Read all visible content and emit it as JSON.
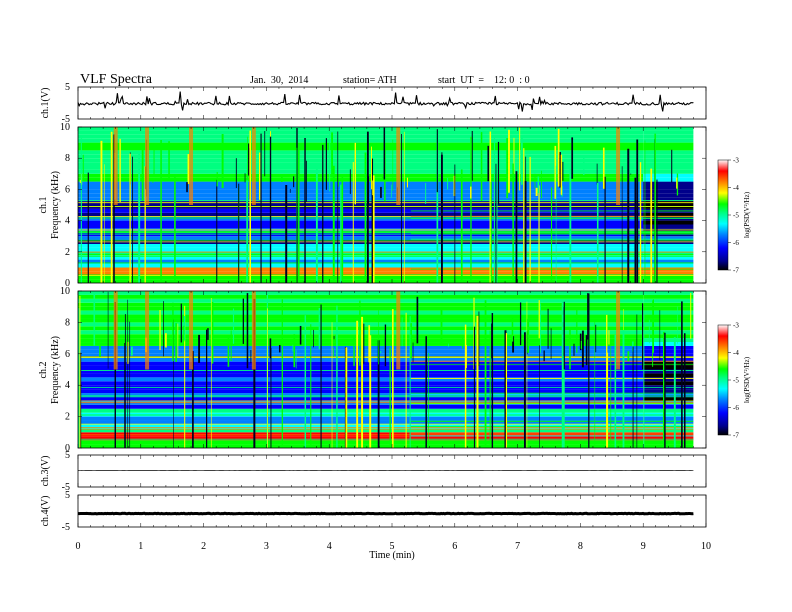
{
  "header": {
    "title": "VLF  Spectra",
    "date": "Jan.  30,  2014",
    "station": "station= ATH",
    "start": "start  UT  =    12: 0  : 0"
  },
  "chart_data": [
    {
      "type": "line",
      "panel": "ch1-waveform",
      "ylabel": "ch.1(V)",
      "ylim": [
        -5,
        5
      ],
      "yticks": [
        "5",
        "-5"
      ],
      "baseline_level": -0.2,
      "description_values": {
        "mean": -0.2,
        "typical_spike_min": -3.5,
        "typical_spike_max": 3.8
      }
    },
    {
      "type": "heatmap",
      "panel": "ch1-spectrogram",
      "ylabel_channel": "ch.1",
      "ylabel": "Frequency  (kHz)",
      "ylim": [
        0,
        10
      ],
      "yticks": [
        "10",
        "8",
        "6",
        "4",
        "2",
        "0"
      ],
      "colorbar": {
        "label": "log(PSD(V²/Hz)",
        "range": [
          -7,
          -3
        ],
        "ticks": [
          "-3",
          "-4",
          "-5",
          "-6",
          "-7"
        ]
      },
      "features": {
        "quiet_change_time_min": 9.0,
        "band_change_time_min": 5.3,
        "strong_burst_times_min": [
          0.6,
          1.1,
          1.8,
          2.8,
          5.1,
          8.6
        ]
      }
    },
    {
      "type": "heatmap",
      "panel": "ch2-spectrogram",
      "ylabel_channel": "ch.2",
      "ylabel": "Frequency  (kHz)",
      "ylim": [
        0,
        10
      ],
      "yticks": [
        "10",
        "8",
        "6",
        "4",
        "2",
        "0"
      ],
      "colorbar": {
        "label": "log(PSD(V²/Hz)",
        "range": [
          -7,
          -3
        ],
        "ticks": [
          "-3",
          "-4",
          "-5",
          "-6",
          "-7"
        ]
      },
      "features": {
        "quiet_change_time_min": 9.0,
        "band_change_time_min": 5.3,
        "strong_burst_times_min": [
          0.6,
          1.1,
          1.8,
          2.8,
          5.1,
          8.6
        ]
      }
    },
    {
      "type": "line",
      "panel": "ch3-waveform",
      "ylabel": "ch.3(V)",
      "ylim": [
        -5,
        5
      ],
      "yticks": [
        "5",
        "-5"
      ],
      "baseline_level": 0.2
    },
    {
      "type": "line",
      "panel": "ch4-waveform",
      "ylabel": "ch.4(V)",
      "ylim": [
        -5,
        5
      ],
      "yticks": [
        "5",
        "-5"
      ],
      "baseline_level": -0.8
    }
  ],
  "xaxis": {
    "label": "Time  (min)",
    "xlim": [
      0,
      10
    ],
    "ticks": [
      "0",
      "1",
      "2",
      "3",
      "4",
      "5",
      "6",
      "7",
      "8",
      "9",
      "10"
    ],
    "data_end_min": 9.8
  },
  "colors": {
    "colormap": [
      "#000000",
      "#00008b",
      "#0000ff",
      "#0080ff",
      "#00ffff",
      "#00ff80",
      "#00ff00",
      "#ffff00",
      "#ff8000",
      "#ff0000",
      "#ffffff"
    ]
  }
}
